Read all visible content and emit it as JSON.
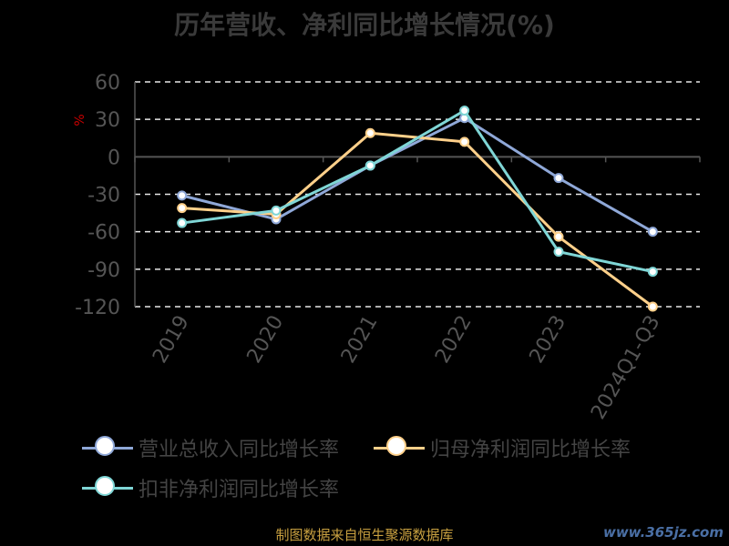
{
  "chart_data": {
    "type": "line",
    "title": "历年营收、净利同比增长情况(%)",
    "ylabel": "%",
    "categories": [
      "2019",
      "2020",
      "2021",
      "2022",
      "2023",
      "2024Q1-Q3"
    ],
    "ylim": [
      -120,
      60
    ],
    "yticks": [
      60,
      30,
      0,
      -30,
      -60,
      -90,
      -120
    ],
    "grid": true,
    "legend_position": "bottom",
    "series": [
      {
        "name": "营业总收入同比增长率",
        "color": "#8fa8d8",
        "values": [
          -31,
          -50,
          -7,
          31,
          -17,
          -60
        ]
      },
      {
        "name": "归母净利润同比增长率",
        "color": "#ffd08a",
        "values": [
          -41,
          -46,
          19,
          12,
          -64,
          -120
        ]
      },
      {
        "name": "扣非净利润同比增长率",
        "color": "#7fd6d6",
        "values": [
          -53,
          -43,
          -7,
          37,
          -76,
          -92
        ]
      }
    ]
  },
  "source": "制图数据来自恒生聚源数据库",
  "watermark": "www.365jz.com"
}
